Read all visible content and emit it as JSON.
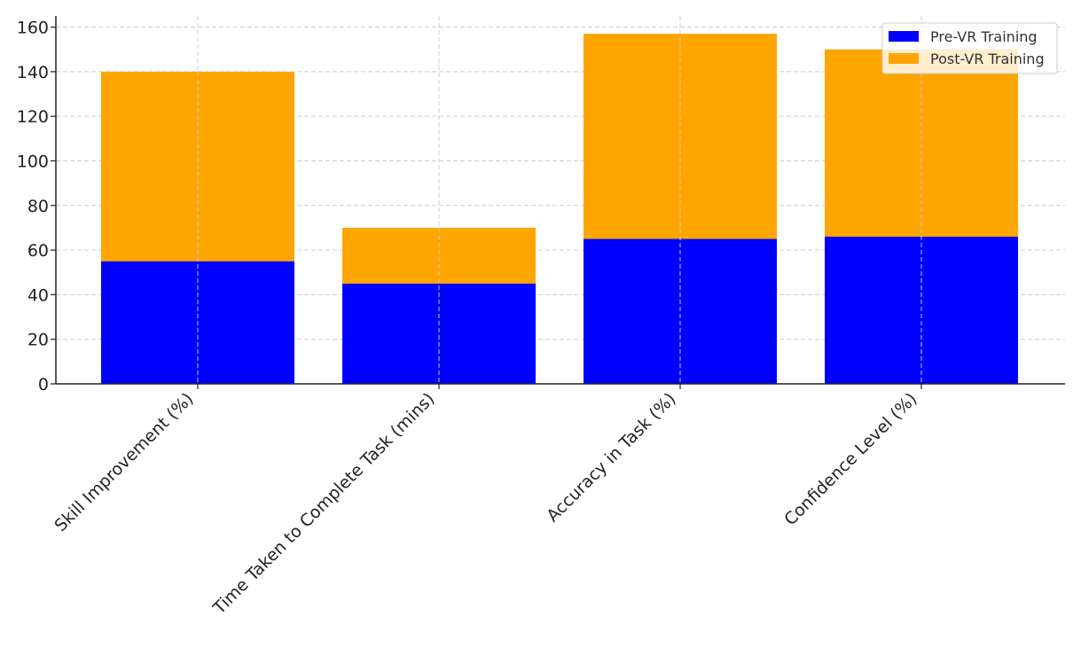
{
  "chart_data": {
    "type": "bar",
    "stacked": true,
    "categories": [
      "Skill Improvement (%)",
      "Time Taken to Complete Task (mins)",
      "Accuracy in Task (%)",
      "Confidence Level (%)"
    ],
    "series": [
      {
        "name": "Pre-VR Training",
        "color": "#0000ff",
        "values": [
          55,
          45,
          65,
          66
        ]
      },
      {
        "name": "Post-VR Training",
        "color": "#ffa500",
        "values": [
          85,
          25,
          92,
          84
        ]
      }
    ],
    "title": "",
    "xlabel": "",
    "ylabel": "",
    "ylim": [
      0,
      165
    ],
    "yticks": [
      0,
      20,
      40,
      60,
      80,
      100,
      120,
      140,
      160
    ],
    "grid": true,
    "legend_position": "top-right"
  }
}
